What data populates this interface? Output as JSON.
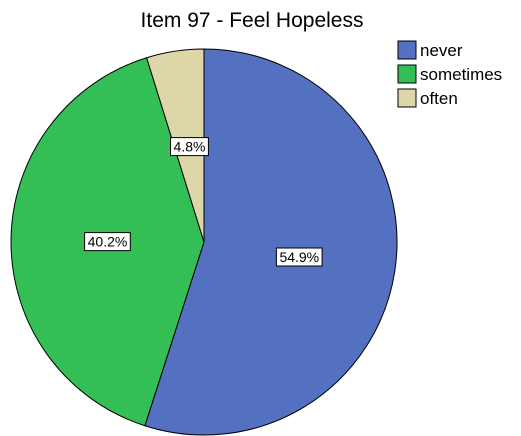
{
  "chart_data": {
    "type": "pie",
    "title": "Item 97 - Feel Hopeless",
    "categories": [
      "never",
      "sometimes",
      "often"
    ],
    "values": [
      54.9,
      40.2,
      4.8
    ],
    "data_labels": [
      "54.9%",
      "40.2%",
      "4.8%"
    ],
    "colors": [
      "#5470C0",
      "#33BF55",
      "#DDD6A8"
    ],
    "start_angle": "12 o'clock",
    "direction": "clockwise",
    "legend_position": "top-right"
  }
}
